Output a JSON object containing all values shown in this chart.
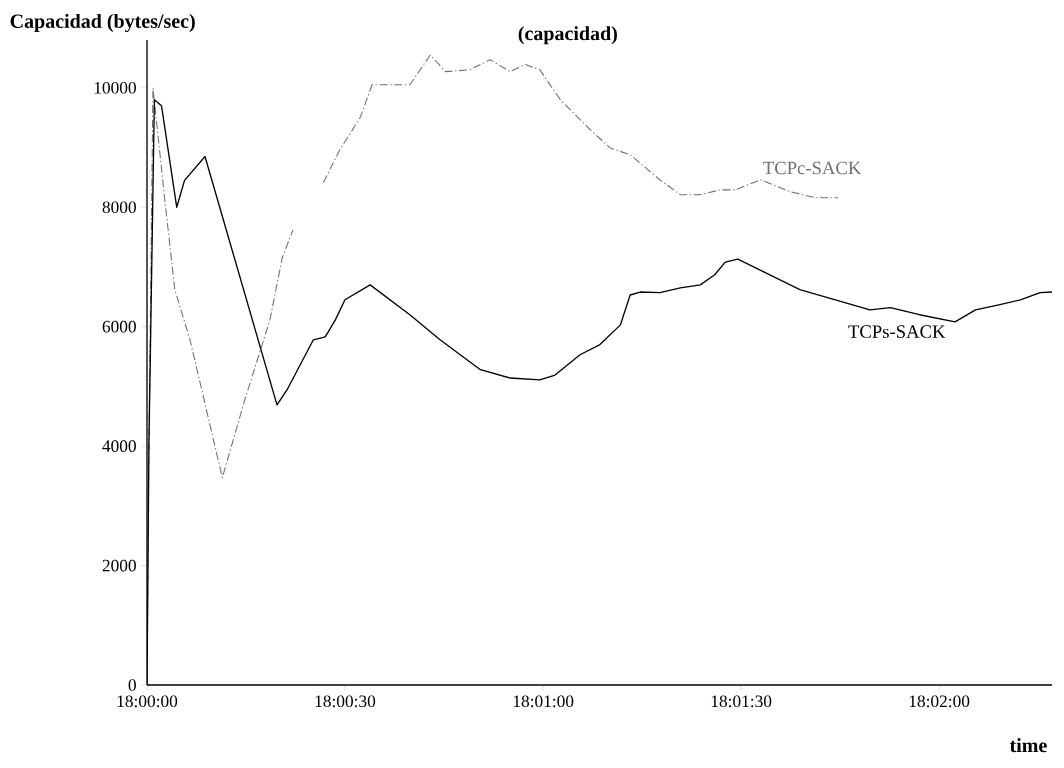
{
  "chart_data": {
    "type": "line",
    "title": "(capacidad)",
    "xlabel": "time",
    "ylabel": "Capacidad (bytes/sec)",
    "xlim": [
      18.0,
      18.03808
    ],
    "ylim": [
      0,
      10800
    ],
    "xticks": [
      {
        "value": 18.0,
        "label": "18:00:00"
      },
      {
        "value": 18.00833,
        "label": "18:00:30"
      },
      {
        "value": 18.01667,
        "label": "18:01:00"
      },
      {
        "value": 18.025,
        "label": "18:01:30"
      },
      {
        "value": 18.03333,
        "label": "18:02:00"
      }
    ],
    "yticks": [
      0,
      2000,
      4000,
      6000,
      8000,
      10000
    ],
    "series": [
      {
        "name": "TCPc-SACK",
        "color": "#707070",
        "line_style": "dashed",
        "x": [
          18.0,
          18.00008,
          18.00025,
          18.00075,
          18.00117,
          18.00181,
          18.00317,
          18.00411,
          18.00517,
          18.00569,
          18.00614,
          18.0068,
          18.00742,
          18.00811,
          18.00897,
          18.00947,
          18.01106,
          18.01192,
          18.01256,
          18.01358,
          18.01444,
          18.01528,
          18.01592,
          18.01653,
          18.01739,
          18.01864,
          18.0195,
          18.02033,
          18.02158,
          18.02244,
          18.02328,
          18.02411,
          18.02475,
          18.02581,
          18.02706,
          18.02811,
          18.02908
        ],
        "values": [
          0,
          4000,
          10000,
          8120,
          6620,
          5780,
          3470,
          4770,
          6110,
          7150,
          7620,
          null,
          8410,
          8960,
          9500,
          10050,
          10050,
          10550,
          10270,
          10300,
          10470,
          10270,
          10390,
          10300,
          9800,
          9300,
          8990,
          8880,
          8460,
          8210,
          8210,
          8290,
          8290,
          8460,
          8260,
          8160,
          8160
        ]
      },
      {
        "name": "TCPs-SACK",
        "color": "#000000",
        "line_style": "solid",
        "x": [
          18.0,
          18.00008,
          18.00031,
          18.00061,
          18.00125,
          18.00158,
          18.00244,
          18.00547,
          18.00589,
          18.007,
          18.0075,
          18.00792,
          18.00833,
          18.00939,
          18.01106,
          18.01233,
          18.01403,
          18.01528,
          18.01653,
          18.01717,
          18.01822,
          18.01906,
          18.01992,
          18.02033,
          18.02075,
          18.02158,
          18.02244,
          18.02328,
          18.02389,
          18.02433,
          18.02486,
          18.02747,
          18.03042,
          18.03128,
          18.0325,
          18.034,
          18.03486,
          18.03589,
          18.03675,
          18.03758,
          18.03808
        ],
        "values": [
          0,
          4000,
          9800,
          9700,
          8000,
          8450,
          8850,
          4690,
          4940,
          5780,
          5830,
          6110,
          6450,
          6700,
          6200,
          5780,
          5280,
          5140,
          5110,
          5190,
          5530,
          5700,
          6030,
          6530,
          6580,
          6570,
          6650,
          6700,
          6870,
          7080,
          7130,
          6620,
          6280,
          6320,
          6200,
          6080,
          6280,
          6370,
          6450,
          6570,
          6580
        ]
      }
    ]
  }
}
